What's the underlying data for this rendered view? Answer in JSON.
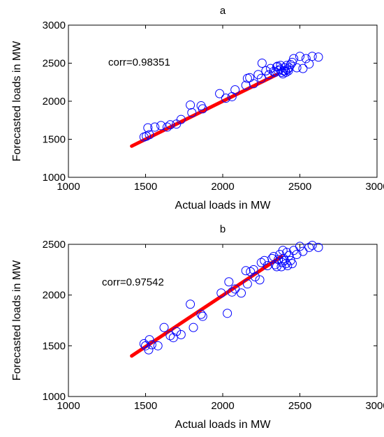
{
  "colors": {
    "scatter": "#0000ff",
    "fit": "#ff0000",
    "axis": "#000000"
  },
  "chart_data": [
    {
      "type": "scatter",
      "title": "a",
      "xlabel": "Actual loads in MW",
      "ylabel": "Forecasted loads in MW",
      "annotation": "corr=0.98351",
      "xlim": [
        1000,
        3000
      ],
      "ylim": [
        1000,
        3000
      ],
      "xticks": [
        1000,
        1500,
        2000,
        2500,
        3000
      ],
      "yticks": [
        1000,
        1500,
        2000,
        2500,
        3000
      ],
      "grid": false,
      "series": [
        {
          "marker": "circle",
          "x": [
            1490,
            1505,
            1515,
            1525,
            1560,
            1600,
            1640,
            1660,
            1700,
            1730,
            1790,
            1800,
            1860,
            1870,
            1980,
            2020,
            2060,
            2080,
            2150,
            2160,
            2175,
            2200,
            2230,
            2250,
            2255,
            2280,
            2300,
            2310,
            2330,
            2340,
            2350,
            2355,
            2360,
            2370,
            2375,
            2385,
            2390,
            2395,
            2400,
            2405,
            2410,
            2415,
            2420,
            2425,
            2430,
            2440,
            2450,
            2460,
            2480,
            2500,
            2520,
            2540,
            2560,
            2580,
            2620
          ],
          "y": [
            1530,
            1540,
            1650,
            1560,
            1660,
            1680,
            1660,
            1690,
            1700,
            1760,
            1950,
            1850,
            1940,
            1900,
            2100,
            2040,
            2060,
            2150,
            2210,
            2300,
            2310,
            2230,
            2350,
            2300,
            2500,
            2400,
            2350,
            2430,
            2390,
            2380,
            2450,
            2460,
            2400,
            2420,
            2470,
            2380,
            2360,
            2400,
            2440,
            2400,
            2380,
            2470,
            2420,
            2400,
            2440,
            2480,
            2510,
            2560,
            2440,
            2590,
            2430,
            2560,
            2490,
            2590,
            2580
          ]
        },
        {
          "marker": "line",
          "x": [
            1410,
            2350
          ],
          "y": [
            1410,
            2350
          ]
        }
      ]
    },
    {
      "type": "scatter",
      "title": "b",
      "xlabel": "Actual loads in MW",
      "ylabel": "Forecasted loads in MW",
      "annotation": "corr=0.97542",
      "xlim": [
        1000,
        3000
      ],
      "ylim": [
        1000,
        2500
      ],
      "xticks": [
        1000,
        1500,
        2000,
        2500,
        3000
      ],
      "yticks": [
        1000,
        1500,
        2000,
        2500
      ],
      "grid": false,
      "series": [
        {
          "marker": "circle",
          "x": [
            1490,
            1500,
            1520,
            1525,
            1540,
            1580,
            1620,
            1660,
            1680,
            1700,
            1730,
            1790,
            1810,
            1860,
            1870,
            1990,
            2030,
            2040,
            2060,
            2080,
            2120,
            2150,
            2160,
            2180,
            2200,
            2210,
            2240,
            2250,
            2270,
            2290,
            2320,
            2330,
            2340,
            2350,
            2360,
            2370,
            2380,
            2385,
            2390,
            2395,
            2400,
            2410,
            2415,
            2420,
            2430,
            2440,
            2450,
            2460,
            2480,
            2500,
            2520,
            2560,
            2580,
            2620
          ],
          "y": [
            1520,
            1500,
            1460,
            1560,
            1510,
            1500,
            1680,
            1600,
            1580,
            1640,
            1610,
            1910,
            1680,
            1810,
            1790,
            2020,
            1820,
            2130,
            2030,
            2060,
            2020,
            2240,
            2110,
            2230,
            2250,
            2180,
            2150,
            2320,
            2340,
            2290,
            2360,
            2380,
            2300,
            2280,
            2350,
            2400,
            2280,
            2320,
            2440,
            2360,
            2340,
            2310,
            2420,
            2290,
            2390,
            2340,
            2310,
            2440,
            2400,
            2480,
            2430,
            2470,
            2490,
            2470
          ]
        },
        {
          "marker": "line",
          "x": [
            1410,
            2380
          ],
          "y": [
            1400,
            2380
          ]
        }
      ]
    }
  ]
}
